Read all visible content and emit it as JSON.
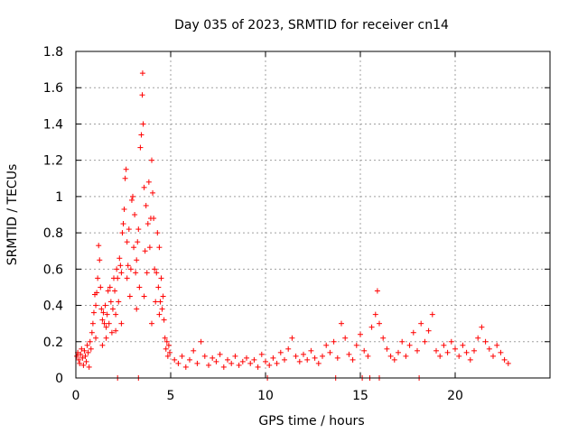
{
  "chart_data": {
    "type": "scatter",
    "title": "Day 035 of 2023, SRMTID for receiver cn14",
    "xlabel": "GPS time / hours",
    "ylabel": "SRMTID / TECUs",
    "xlim": [
      0,
      25
    ],
    "ylim": [
      0,
      1.8
    ],
    "xticks": [
      0,
      5,
      10,
      15,
      20
    ],
    "xtick_labels": [
      "0",
      "5",
      "10",
      "15",
      "20"
    ],
    "yticks": [
      0,
      0.2,
      0.4,
      0.6,
      0.8,
      1,
      1.2,
      1.4,
      1.6,
      1.8
    ],
    "ytick_labels": [
      "0",
      "0.2",
      "0.4",
      "0.6",
      "0.8",
      "1",
      "1.2",
      "1.4",
      "1.6",
      "1.8"
    ],
    "grid": true,
    "marker": "+",
    "color": "#ff0000",
    "series": [
      {
        "name": "SRMTID",
        "points": [
          [
            0.05,
            0.12
          ],
          [
            0.1,
            0.14
          ],
          [
            0.15,
            0.1
          ],
          [
            0.2,
            0.08
          ],
          [
            0.25,
            0.13
          ],
          [
            0.3,
            0.16
          ],
          [
            0.35,
            0.11
          ],
          [
            0.4,
            0.07
          ],
          [
            0.45,
            0.15
          ],
          [
            0.5,
            0.12
          ],
          [
            0.55,
            0.09
          ],
          [
            0.6,
            0.18
          ],
          [
            0.65,
            0.14
          ],
          [
            0.7,
            0.06
          ],
          [
            0.75,
            0.2
          ],
          [
            0.8,
            0.16
          ],
          [
            0.85,
            0.25
          ],
          [
            0.9,
            0.3
          ],
          [
            0.95,
            0.36
          ],
          [
            1.0,
            0.46
          ],
          [
            1.05,
            0.4
          ],
          [
            1.1,
            0.47
          ],
          [
            1.15,
            0.55
          ],
          [
            1.2,
            0.73
          ],
          [
            1.25,
            0.65
          ],
          [
            1.3,
            0.5
          ],
          [
            1.35,
            0.38
          ],
          [
            1.4,
            0.32
          ],
          [
            1.45,
            0.36
          ],
          [
            1.5,
            0.3
          ],
          [
            1.55,
            0.4
          ],
          [
            1.6,
            0.28
          ],
          [
            1.65,
            0.35
          ],
          [
            1.7,
            0.48
          ],
          [
            1.75,
            0.3
          ],
          [
            1.8,
            0.5
          ],
          [
            1.85,
            0.42
          ],
          [
            1.9,
            0.25
          ],
          [
            1.95,
            0.38
          ],
          [
            2.0,
            0.55
          ],
          [
            2.05,
            0.48
          ],
          [
            2.1,
            0.35
          ],
          [
            2.15,
            0.6
          ],
          [
            2.2,
            0.55
          ],
          [
            2.25,
            0.42
          ],
          [
            2.3,
            0.66
          ],
          [
            2.35,
            0.62
          ],
          [
            2.4,
            0.58
          ],
          [
            2.45,
            0.8
          ],
          [
            2.5,
            0.85
          ],
          [
            2.55,
            0.93
          ],
          [
            2.6,
            1.1
          ],
          [
            2.65,
            1.15
          ],
          [
            2.7,
            0.75
          ],
          [
            2.75,
            0.62
          ],
          [
            2.8,
            0.82
          ],
          [
            2.85,
            0.45
          ],
          [
            2.9,
            0.6
          ],
          [
            2.95,
            0.98
          ],
          [
            3.0,
            1.0
          ],
          [
            3.05,
            0.72
          ],
          [
            3.1,
            0.9
          ],
          [
            3.15,
            0.58
          ],
          [
            3.2,
            0.38
          ],
          [
            3.25,
            0.75
          ],
          [
            3.3,
            0.82
          ],
          [
            3.35,
            0.5
          ],
          [
            3.4,
            1.27
          ],
          [
            3.45,
            1.34
          ],
          [
            3.5,
            1.56
          ],
          [
            3.52,
            1.68
          ],
          [
            3.55,
            1.4
          ],
          [
            3.6,
            1.05
          ],
          [
            3.65,
            0.7
          ],
          [
            3.7,
            0.95
          ],
          [
            3.75,
            0.58
          ],
          [
            3.8,
            0.85
          ],
          [
            3.85,
            1.08
          ],
          [
            3.9,
            0.72
          ],
          [
            3.95,
            0.88
          ],
          [
            4.0,
            1.2
          ],
          [
            4.05,
            1.02
          ],
          [
            4.1,
            0.88
          ],
          [
            4.15,
            0.6
          ],
          [
            4.2,
            0.42
          ],
          [
            4.25,
            0.58
          ],
          [
            4.3,
            0.8
          ],
          [
            4.35,
            0.5
          ],
          [
            4.4,
            0.35
          ],
          [
            4.45,
            0.42
          ],
          [
            4.5,
            0.55
          ],
          [
            4.55,
            0.38
          ],
          [
            4.6,
            0.45
          ],
          [
            4.65,
            0.32
          ],
          [
            4.7,
            0.22
          ],
          [
            4.75,
            0.16
          ],
          [
            4.8,
            0.2
          ],
          [
            4.85,
            0.12
          ],
          [
            4.9,
            0.18
          ],
          [
            4.95,
            0.14
          ],
          [
            1.05,
            0.22
          ],
          [
            1.4,
            0.18
          ],
          [
            2.1,
            0.26
          ],
          [
            2.7,
            0.55
          ],
          [
            3.2,
            0.65
          ],
          [
            3.6,
            0.45
          ],
          [
            4.0,
            0.3
          ],
          [
            4.4,
            0.72
          ],
          [
            2.4,
            0.3
          ],
          [
            1.6,
            0.22
          ],
          [
            5.2,
            0.1
          ],
          [
            5.4,
            0.08
          ],
          [
            5.6,
            0.12
          ],
          [
            5.8,
            0.06
          ],
          [
            6.0,
            0.1
          ],
          [
            6.2,
            0.15
          ],
          [
            6.4,
            0.08
          ],
          [
            6.6,
            0.2
          ],
          [
            6.8,
            0.12
          ],
          [
            7.0,
            0.07
          ],
          [
            7.2,
            0.11
          ],
          [
            7.4,
            0.09
          ],
          [
            7.6,
            0.13
          ],
          [
            7.8,
            0.06
          ],
          [
            8.0,
            0.1
          ],
          [
            8.2,
            0.08
          ],
          [
            8.4,
            0.12
          ],
          [
            8.6,
            0.07
          ],
          [
            8.8,
            0.09
          ],
          [
            9.0,
            0.11
          ],
          [
            9.2,
            0.08
          ],
          [
            9.4,
            0.1
          ],
          [
            9.6,
            0.06
          ],
          [
            9.8,
            0.13
          ],
          [
            10.0,
            0.09
          ],
          [
            10.2,
            0.07
          ],
          [
            10.4,
            0.11
          ],
          [
            10.6,
            0.08
          ],
          [
            10.8,
            0.14
          ],
          [
            11.0,
            0.1
          ],
          [
            11.2,
            0.16
          ],
          [
            11.4,
            0.22
          ],
          [
            11.6,
            0.12
          ],
          [
            11.8,
            0.09
          ],
          [
            12.0,
            0.13
          ],
          [
            12.2,
            0.1
          ],
          [
            12.4,
            0.15
          ],
          [
            12.6,
            0.11
          ],
          [
            12.8,
            0.08
          ],
          [
            13.0,
            0.12
          ],
          [
            13.2,
            0.18
          ],
          [
            13.4,
            0.14
          ],
          [
            13.6,
            0.2
          ],
          [
            13.8,
            0.11
          ],
          [
            14.0,
            0.3
          ],
          [
            14.2,
            0.22
          ],
          [
            14.4,
            0.13
          ],
          [
            14.6,
            0.1
          ],
          [
            14.8,
            0.18
          ],
          [
            15.0,
            0.24
          ],
          [
            15.2,
            0.15
          ],
          [
            15.4,
            0.12
          ],
          [
            15.6,
            0.28
          ],
          [
            15.8,
            0.35
          ],
          [
            15.9,
            0.48
          ],
          [
            16.0,
            0.3
          ],
          [
            16.2,
            0.22
          ],
          [
            16.4,
            0.16
          ],
          [
            16.6,
            0.12
          ],
          [
            16.8,
            0.1
          ],
          [
            17.0,
            0.14
          ],
          [
            17.2,
            0.2
          ],
          [
            17.4,
            0.12
          ],
          [
            17.6,
            0.18
          ],
          [
            17.8,
            0.25
          ],
          [
            18.0,
            0.15
          ],
          [
            18.2,
            0.3
          ],
          [
            18.4,
            0.2
          ],
          [
            18.6,
            0.26
          ],
          [
            18.8,
            0.35
          ],
          [
            19.0,
            0.15
          ],
          [
            19.2,
            0.12
          ],
          [
            19.4,
            0.18
          ],
          [
            19.6,
            0.14
          ],
          [
            19.8,
            0.2
          ],
          [
            20.0,
            0.16
          ],
          [
            20.2,
            0.12
          ],
          [
            20.4,
            0.18
          ],
          [
            20.6,
            0.14
          ],
          [
            20.8,
            0.1
          ],
          [
            21.0,
            0.15
          ],
          [
            21.2,
            0.22
          ],
          [
            21.4,
            0.28
          ],
          [
            21.6,
            0.2
          ],
          [
            21.8,
            0.16
          ],
          [
            22.0,
            0.12
          ],
          [
            22.2,
            0.18
          ],
          [
            22.4,
            0.14
          ],
          [
            22.6,
            0.1
          ],
          [
            22.8,
            0.08
          ],
          [
            2.2,
            0.0
          ],
          [
            3.3,
            0.0
          ],
          [
            10.1,
            0.0
          ],
          [
            13.7,
            0.0
          ],
          [
            15.1,
            0.0
          ],
          [
            15.5,
            0.0
          ],
          [
            16.0,
            0.0
          ],
          [
            18.1,
            0.0
          ]
        ]
      }
    ]
  }
}
